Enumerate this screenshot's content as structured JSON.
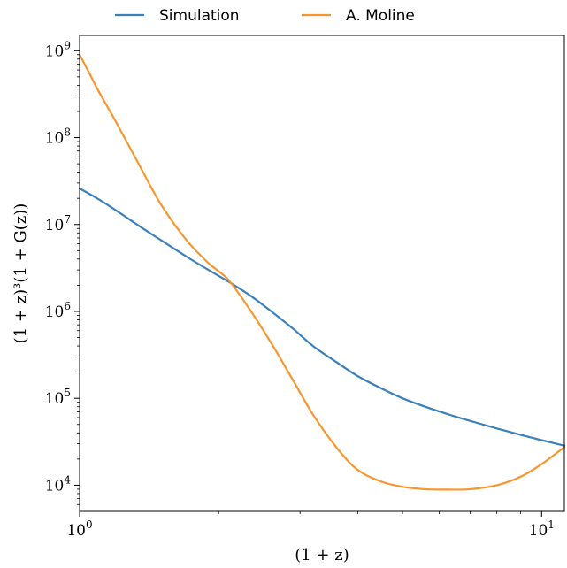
{
  "chart_data": {
    "type": "line",
    "xscale": "log",
    "yscale": "log",
    "xlim": [
      1,
      11.2
    ],
    "ylim": [
      5000,
      1500000000
    ],
    "xlabel": "(1 + z)",
    "ylabel": "(1 + z)³(1 + G(z))",
    "x_ticks": [
      {
        "base": "10",
        "exp": "0",
        "value": 1
      },
      {
        "base": "10",
        "exp": "1",
        "value": 10
      }
    ],
    "y_ticks": [
      {
        "base": "10",
        "exp": "4",
        "value": 10000
      },
      {
        "base": "10",
        "exp": "5",
        "value": 100000
      },
      {
        "base": "10",
        "exp": "6",
        "value": 1000000
      },
      {
        "base": "10",
        "exp": "7",
        "value": 10000000
      },
      {
        "base": "10",
        "exp": "8",
        "value": 100000000
      },
      {
        "base": "10",
        "exp": "9",
        "value": 1000000000
      }
    ],
    "legend_position": "top-center, outside plot",
    "grid": false,
    "series": [
      {
        "name": "Simulation",
        "color": "#3a80bb",
        "x": [
          1.0,
          1.1,
          1.2,
          1.35,
          1.5,
          1.7,
          1.9,
          2.1,
          2.35,
          2.6,
          2.9,
          3.2,
          3.6,
          4.0,
          4.5,
          5.0,
          5.6,
          6.3,
          7.0,
          8.0,
          9.0,
          10.0,
          11.2
        ],
        "y": [
          26000000,
          19500000,
          14500000,
          9500000,
          6600000,
          4300000,
          3000000,
          2200000,
          1500000,
          1000000,
          630000,
          400000,
          260000,
          180000,
          130000,
          100000,
          80000,
          65000,
          55000,
          45000,
          38000,
          33000,
          28500
        ]
      },
      {
        "name": "A. Moline",
        "color": "#f7962f",
        "x": [
          1.0,
          1.05,
          1.1,
          1.2,
          1.35,
          1.5,
          1.7,
          1.9,
          2.1,
          2.35,
          2.6,
          2.9,
          3.2,
          3.6,
          4.0,
          4.5,
          5.0,
          5.6,
          6.3,
          7.0,
          8.0,
          9.0,
          10.0,
          11.2
        ],
        "y": [
          900000000,
          550000000,
          340000000,
          150000000,
          47000000,
          17000000,
          6700000,
          3600000,
          2300000,
          1000000,
          430000,
          160000,
          65000,
          27000,
          15000,
          11000,
          9600,
          9000,
          8900,
          9000,
          10000,
          12500,
          17500,
          27500
        ]
      }
    ]
  }
}
